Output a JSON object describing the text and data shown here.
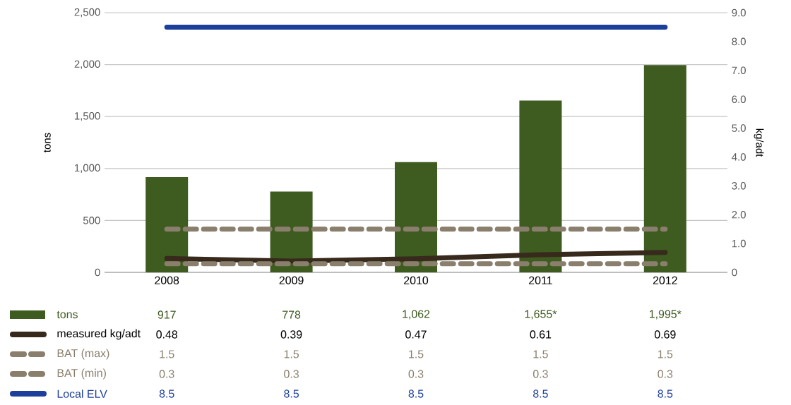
{
  "chart_data": {
    "type": "bar",
    "ylabel": "tons",
    "y2label": "kg/adt",
    "categories": [
      "2008",
      "2009",
      "2010",
      "2011",
      "2012"
    ],
    "series": [
      {
        "name": "tons",
        "color": "#3e5b20",
        "values": [
          917,
          778,
          1062,
          1655,
          1995
        ],
        "value_labels": [
          "917",
          "778",
          "1,062",
          "1,655*",
          "1,995*"
        ]
      },
      {
        "name": "measured kg/adt",
        "type": "line",
        "axis": "y2",
        "line_style": "solid",
        "color": "#372a1c",
        "values": [
          0.48,
          0.39,
          0.47,
          0.61,
          0.69
        ],
        "value_labels": [
          "0.48",
          "0.39",
          "0.47",
          "0.61",
          "0.69"
        ]
      },
      {
        "name": "BAT (max)",
        "type": "line",
        "axis": "y2",
        "line_style": "dashed",
        "color": "#8a7f6c",
        "values": [
          1.5,
          1.5,
          1.5,
          1.5,
          1.5
        ],
        "value_labels": [
          "1.5",
          "1.5",
          "1.5",
          "1.5",
          "1.5"
        ]
      },
      {
        "name": "BAT (min)",
        "type": "line",
        "axis": "y2",
        "line_style": "dashed",
        "color": "#8a7f6c",
        "values": [
          0.3,
          0.3,
          0.3,
          0.3,
          0.3
        ],
        "value_labels": [
          "0.3",
          "0.3",
          "0.3",
          "0.3",
          "0.3"
        ]
      },
      {
        "name": "Local ELV",
        "type": "line",
        "axis": "y2",
        "line_style": "solid",
        "color": "#1d3f9c",
        "values": [
          8.5,
          8.5,
          8.5,
          8.5,
          8.5
        ],
        "value_labels": [
          "8.5",
          "8.5",
          "8.5",
          "8.5",
          "8.5"
        ]
      }
    ],
    "ylim": [
      0,
      2500
    ],
    "yticks": [
      0,
      500,
      {
        "value": 1000,
        "label": "1,000"
      },
      {
        "value": 1500,
        "label": "1,500"
      },
      {
        "value": 2000,
        "label": "2,000"
      },
      {
        "value": 2500,
        "label": "2,500"
      }
    ],
    "y2lim": [
      0,
      9
    ],
    "y2ticks": [
      0,
      {
        "value": 1,
        "label": "1.0"
      },
      {
        "value": 2,
        "label": "2.0"
      },
      {
        "value": 3,
        "label": "3.0"
      },
      {
        "value": 4,
        "label": "4.0"
      },
      {
        "value": 5,
        "label": "5.0"
      },
      {
        "value": 6,
        "label": "6.0"
      },
      {
        "value": 7,
        "label": "7.0"
      },
      {
        "value": 8,
        "label": "8.0"
      },
      {
        "value": 9,
        "label": "9.0"
      }
    ],
    "grid": "y",
    "legend": "bottom"
  }
}
